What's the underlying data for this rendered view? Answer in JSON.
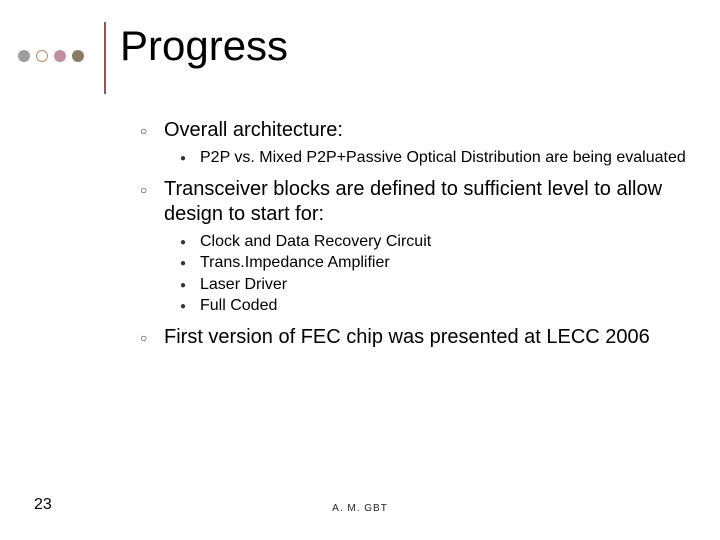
{
  "theme": {
    "rule_color": "#8b5a5a",
    "dot1_color": "#9e9e9e",
    "dot2_color": "#b58f6f",
    "dot3_color": "#c28f9e",
    "dot4_color": "#8a7a6a",
    "title_color": "#000000",
    "body_color": "#000000",
    "hollow_bullet_color": "#333333",
    "solid_bullet_color": "#333333",
    "title_fontsize": 42,
    "lvl1_fontsize": 20,
    "lvl2_fontsize": 16
  },
  "title": "Progress",
  "bullets": [
    {
      "text": "Overall architecture:",
      "children": [
        "P2P vs. Mixed P2P+Passive Optical Distribution are being evaluated"
      ]
    },
    {
      "text": "Transceiver blocks are defined to sufficient level to allow design to start for:",
      "children": [
        "Clock and Data Recovery Circuit",
        "Trans.Impedance Amplifier",
        "Laser Driver",
        "Full Coded"
      ]
    },
    {
      "text": "First version of FEC chip was presented at LECC 2006",
      "children": []
    }
  ],
  "footer": {
    "page": "23",
    "center": "A. M. GBT"
  }
}
